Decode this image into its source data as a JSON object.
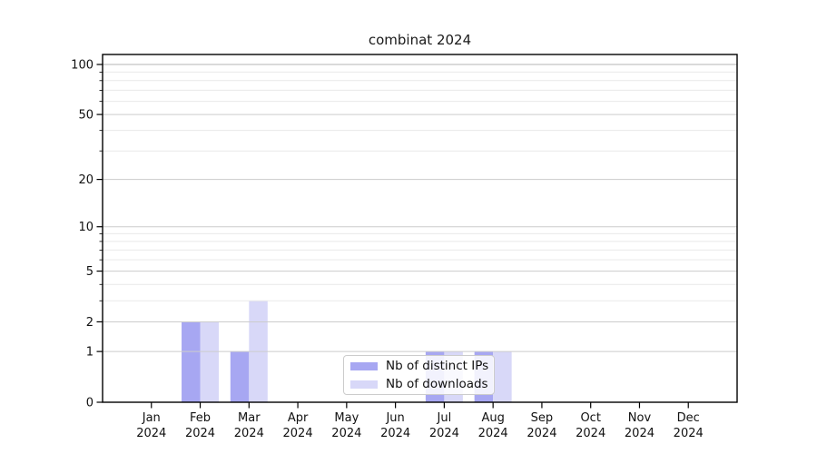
{
  "figure": {
    "background": "#ffffff"
  },
  "chart_data": {
    "type": "bar",
    "title": "combinat 2024",
    "categories": [
      "Jan",
      "Feb",
      "Mar",
      "Apr",
      "May",
      "Jun",
      "Jul",
      "Aug",
      "Sep",
      "Oct",
      "Nov",
      "Dec"
    ],
    "category_year": "2024",
    "series": [
      {
        "name": "Nb of distinct IPs",
        "color": "#a7a7f2",
        "values": [
          0,
          2,
          1,
          0,
          0,
          0,
          1,
          1,
          0,
          0,
          0,
          0
        ]
      },
      {
        "name": "Nb of downloads",
        "color": "#d8d8f8",
        "values": [
          0,
          2,
          3,
          0,
          0,
          0,
          1,
          1,
          0,
          0,
          0,
          0
        ]
      }
    ],
    "xlabel": "",
    "ylabel": "",
    "y_axis": {
      "scale": "log1p",
      "major_ticks": [
        0,
        1,
        2,
        5,
        10,
        20,
        50,
        100
      ],
      "minor_ticks": [
        3,
        4,
        6,
        7,
        8,
        9,
        30,
        40,
        60,
        70,
        80,
        90
      ],
      "ylim": [
        0,
        115
      ]
    },
    "grid": {
      "horizontal": true,
      "major_color": "#cccccc",
      "minor_color": "#e9e9e9",
      "top_line_color": "#b5b5b5"
    },
    "legend": {
      "position": "lower center",
      "items": [
        "Nb of distinct IPs",
        "Nb of downloads"
      ]
    }
  }
}
